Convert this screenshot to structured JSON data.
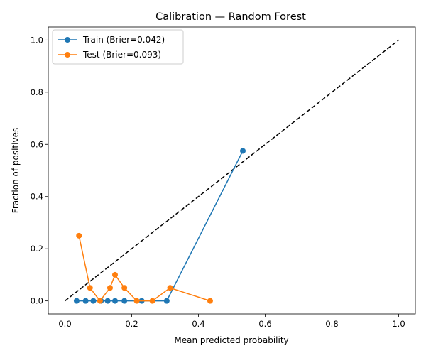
{
  "chart_data": {
    "type": "line",
    "title": "Calibration — Random Forest",
    "xlabel": "Mean predicted probability",
    "ylabel": "Fraction of positives",
    "xlim": [
      -0.05,
      1.05
    ],
    "ylim": [
      -0.05,
      1.05
    ],
    "x_ticks": [
      "0.0",
      "0.2",
      "0.4",
      "0.6",
      "0.8",
      "1.0"
    ],
    "y_ticks": [
      "0.0",
      "0.2",
      "0.4",
      "0.6",
      "0.8",
      "1.0"
    ],
    "grid": false,
    "legend_position": "top-left",
    "reference_line": {
      "x": [
        0,
        1
      ],
      "y": [
        0,
        1
      ],
      "style": "dashed",
      "color": "#000000"
    },
    "series": [
      {
        "name": "Train (Brier=0.042)",
        "color": "#1f77b4",
        "x": [
          0.035,
          0.062,
          0.085,
          0.108,
          0.128,
          0.15,
          0.178,
          0.23,
          0.305,
          0.533
        ],
        "y": [
          0.0,
          0.0,
          0.0,
          0.0,
          0.0,
          0.0,
          0.0,
          0.0,
          0.0,
          0.575
        ]
      },
      {
        "name": "Test (Brier=0.093)",
        "color": "#ff7f0e",
        "x": [
          0.042,
          0.075,
          0.105,
          0.135,
          0.15,
          0.178,
          0.215,
          0.262,
          0.315,
          0.435
        ],
        "y": [
          0.25,
          0.05,
          0.0,
          0.05,
          0.1,
          0.05,
          0.0,
          0.0,
          0.05,
          0.0
        ]
      }
    ]
  }
}
